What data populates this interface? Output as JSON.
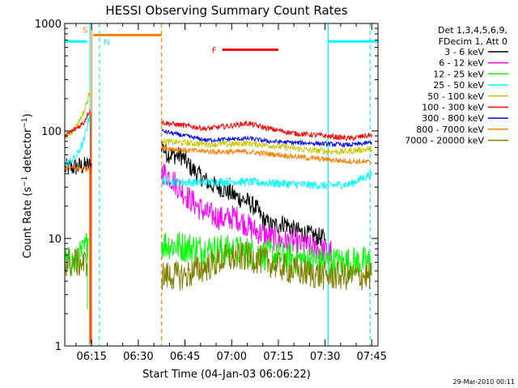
{
  "chart_data": {
    "type": "line",
    "title": "HESSI Observing Summary Count Rates",
    "xlabel": "Start Time (04-Jan-03 06:06:22)",
    "ylabel": "Count Rate (s⁻¹ detector⁻¹)",
    "ylabel_main": "Count Rate (s",
    "ylabel_sup1": "−1",
    "ylabel_mid": " detector",
    "ylabel_sup2": "−1",
    "ylabel_close": ")",
    "footer": "29-Mar-2010 00:11",
    "y_scale": "log",
    "ylim": [
      1,
      1000
    ],
    "xlim": [
      "06:06:22",
      "07:47:00"
    ],
    "y_ticks": [
      {
        "v": 1,
        "label": "1"
      },
      {
        "v": 10,
        "label": "10"
      },
      {
        "v": 100,
        "label": "100"
      },
      {
        "v": 1000,
        "label": "1000"
      }
    ],
    "x_ticks": [
      {
        "t": "06:15",
        "label": "06:15"
      },
      {
        "t": "06:30",
        "label": "06:30"
      },
      {
        "t": "06:45",
        "label": "06:45"
      },
      {
        "t": "07:00",
        "label": "07:00"
      },
      {
        "t": "07:15",
        "label": "07:15"
      },
      {
        "t": "07:30",
        "label": "07:30"
      },
      {
        "t": "07:45",
        "label": "07:45"
      }
    ],
    "legend_header": [
      "Det 1,3,4,5,6,9,",
      "FDecim 1, Att 0"
    ],
    "legend_placement": "right",
    "series": [
      {
        "name": "3 - 6 keV",
        "color": "#000000",
        "segments": [
          {
            "t0": "06:06:30",
            "t1": "06:15:00",
            "v0": 45,
            "v1": 48
          },
          {
            "t0": "06:37:30",
            "t1": "07:45:00",
            "points": [
              [
                "06:37:30",
                75
              ],
              [
                "06:39:00",
                62
              ],
              [
                "06:41:00",
                60
              ],
              [
                "06:44:00",
                58
              ],
              [
                "06:47:00",
                45
              ],
              [
                "06:50:00",
                38
              ],
              [
                "06:53:00",
                32
              ],
              [
                "06:56:00",
                30
              ],
              [
                "06:59:00",
                27
              ],
              [
                "07:02:00",
                24
              ],
              [
                "07:05:00",
                22
              ],
              [
                "07:08:00",
                19
              ],
              [
                "07:10:00",
                15
              ],
              [
                "07:13:00",
                13
              ],
              [
                "07:17:00",
                14
              ],
              [
                "07:20:00",
                12
              ],
              [
                "07:24:00",
                11
              ],
              [
                "07:27:00",
                10.5
              ],
              [
                "07:30:00",
                10
              ]
            ]
          }
        ]
      },
      {
        "name": "6 - 12 keV",
        "color": "#ff00ff",
        "segments": [
          {
            "t0": "06:37:30",
            "t1": "07:32:00",
            "points": [
              [
                "06:37:30",
                42
              ],
              [
                "06:40:00",
                38
              ],
              [
                "06:43:00",
                30
              ],
              [
                "06:46:00",
                24
              ],
              [
                "06:49:00",
                20
              ],
              [
                "06:52:00",
                17
              ],
              [
                "06:55:00",
                16
              ],
              [
                "06:58:00",
                15
              ],
              [
                "07:01:00",
                16
              ],
              [
                "07:04:00",
                14
              ],
              [
                "07:07:00",
                12
              ],
              [
                "07:10:00",
                11
              ],
              [
                "07:13:00",
                10
              ],
              [
                "07:16:00",
                9.5
              ],
              [
                "07:20:00",
                9
              ],
              [
                "07:24:00",
                8.5
              ],
              [
                "07:28:00",
                8
              ],
              [
                "07:32:00",
                7.5
              ]
            ]
          }
        ]
      },
      {
        "name": "12 - 25 keV",
        "color": "#00ff00",
        "segments": [
          {
            "t0": "06:06:30",
            "t1": "06:14:00",
            "points": [
              [
                "06:06:30",
                6
              ],
              [
                "06:10:00",
                6
              ],
              [
                "06:13:00",
                8
              ],
              [
                "06:14:00",
                10
              ]
            ]
          },
          {
            "t0": "06:37:30",
            "t1": "07:45:00",
            "points": [
              [
                "06:37:30",
                9
              ],
              [
                "06:43:00",
                8.5
              ],
              [
                "06:50:00",
                8
              ],
              [
                "06:57:00",
                7.8
              ],
              [
                "07:05:00",
                7.5
              ],
              [
                "07:12:00",
                7
              ],
              [
                "07:20:00",
                6.5
              ],
              [
                "07:30:00",
                6
              ],
              [
                "07:38:00",
                6
              ],
              [
                "07:45:00",
                6
              ]
            ]
          }
        ]
      },
      {
        "name": "25 - 50 keV",
        "color": "#00ffff",
        "segments": [
          {
            "t0": "06:06:30",
            "t1": "06:14:30",
            "points": [
              [
                "06:06:30",
                48
              ],
              [
                "06:10:00",
                58
              ],
              [
                "06:12:30",
                80
              ],
              [
                "06:14:30",
                150
              ]
            ]
          },
          {
            "t0": "06:37:30",
            "t1": "07:45:00",
            "points": [
              [
                "06:37:30",
                34
              ],
              [
                "06:50:00",
                33
              ],
              [
                "07:00:00",
                34
              ],
              [
                "07:10:00",
                33
              ],
              [
                "07:20:00",
                32
              ],
              [
                "07:30:00",
                31
              ],
              [
                "07:38:00",
                32
              ],
              [
                "07:45:00",
                40
              ]
            ]
          }
        ]
      },
      {
        "name": "50 - 100 keV",
        "color": "#c8c800",
        "segments": [
          {
            "t0": "06:06:30",
            "t1": "06:14:30",
            "points": [
              [
                "06:06:30",
                85
              ],
              [
                "06:10:00",
                110
              ],
              [
                "06:12:30",
                150
              ],
              [
                "06:14:30",
                230
              ]
            ]
          },
          {
            "t0": "06:37:30",
            "t1": "07:45:00",
            "points": [
              [
                "06:37:30",
                80
              ],
              [
                "06:50:00",
                76
              ],
              [
                "07:00:00",
                75
              ],
              [
                "07:05:00",
                77
              ],
              [
                "07:15:00",
                72
              ],
              [
                "07:25:00",
                66
              ],
              [
                "07:35:00",
                64
              ],
              [
                "07:45:00",
                68
              ]
            ]
          }
        ]
      },
      {
        "name": "100 - 300 keV",
        "color": "#ff0000",
        "segments": [
          {
            "t0": "06:06:30",
            "t1": "06:14:30",
            "points": [
              [
                "06:06:30",
                90
              ],
              [
                "06:10:00",
                105
              ],
              [
                "06:12:30",
                120
              ],
              [
                "06:14:30",
                160
              ]
            ]
          },
          {
            "t0": "06:37:30",
            "t1": "07:45:00",
            "points": [
              [
                "06:37:30",
                120
              ],
              [
                "06:45:00",
                112
              ],
              [
                "06:52:00",
                105
              ],
              [
                "07:00:00",
                112
              ],
              [
                "07:05:00",
                118
              ],
              [
                "07:12:00",
                105
              ],
              [
                "07:20:00",
                95
              ],
              [
                "07:30:00",
                90
              ],
              [
                "07:38:00",
                85
              ],
              [
                "07:45:00",
                92
              ]
            ]
          }
        ]
      },
      {
        "name": "300 - 800 keV",
        "color": "#0000ff",
        "segments": [
          {
            "t0": "06:37:30",
            "t1": "07:45:00",
            "points": [
              [
                "06:37:30",
                100
              ],
              [
                "06:45:00",
                90
              ],
              [
                "06:52:00",
                82
              ],
              [
                "07:00:00",
                84
              ],
              [
                "07:06:00",
                85
              ],
              [
                "07:12:00",
                80
              ],
              [
                "07:20:00",
                78
              ],
              [
                "07:30:00",
                76
              ],
              [
                "07:38:00",
                74
              ],
              [
                "07:45:00",
                78
              ]
            ]
          }
        ]
      },
      {
        "name": "800 - 7000 keV",
        "color": "#ff8000",
        "segments": [
          {
            "t0": "06:06:30",
            "t1": "06:15:00",
            "points": [
              [
                "06:06:30",
                45
              ],
              [
                "06:10:00",
                45
              ],
              [
                "06:15:00",
                45
              ]
            ]
          },
          {
            "t0": "06:37:30",
            "t1": "07:45:00",
            "points": [
              [
                "06:37:30",
                70
              ],
              [
                "06:45:00",
                66
              ],
              [
                "06:55:00",
                64
              ],
              [
                "07:05:00",
                64
              ],
              [
                "07:15:00",
                60
              ],
              [
                "07:25:00",
                56
              ],
              [
                "07:35:00",
                53
              ],
              [
                "07:45:00",
                51
              ]
            ]
          }
        ]
      },
      {
        "name": "7000 - 20000 keV",
        "color": "#808000",
        "segments": [
          {
            "t0": "06:06:30",
            "t1": "06:13:30",
            "points": [
              [
                "06:06:30",
                6
              ],
              [
                "06:10:00",
                6
              ],
              [
                "06:13:30",
                5.8
              ]
            ]
          },
          {
            "t0": "06:37:30",
            "t1": "07:45:00",
            "points": [
              [
                "06:37:30",
                4.5
              ],
              [
                "06:45:00",
                4.5
              ],
              [
                "06:52:00",
                5.5
              ],
              [
                "06:58:00",
                6.5
              ],
              [
                "07:05:00",
                6.8
              ],
              [
                "07:12:00",
                6
              ],
              [
                "07:20:00",
                5
              ],
              [
                "07:30:00",
                4.5
              ],
              [
                "07:38:00",
                4.5
              ],
              [
                "07:45:00",
                4.5
              ]
            ]
          }
        ]
      }
    ],
    "flags": [
      {
        "label": "S",
        "color": "#ff8000",
        "t0": "06:15:30",
        "t1": "06:37:30",
        "v": 780
      },
      {
        "label": "N",
        "color": "#00ffff",
        "t0": "06:06:30",
        "t1": "06:13:30",
        "v": 680
      },
      {
        "label": "N",
        "color": "#00ffff",
        "t0": "07:31:00",
        "t1": "07:47:00",
        "v": 680
      },
      {
        "label": "F",
        "color": "#ff0000",
        "t0": "06:57:00",
        "t1": "07:15:00",
        "v": 570
      }
    ],
    "vlines": [
      {
        "t": "06:15:00",
        "color": "#ff8000",
        "style": "solid"
      },
      {
        "t": "06:14:30",
        "color": "#00ffff",
        "style": "solid"
      },
      {
        "t": "06:17:30",
        "color": "#00ffff",
        "style": "dashed"
      },
      {
        "t": "06:37:30",
        "color": "#ff8000",
        "style": "dashed"
      },
      {
        "t": "07:31:00",
        "color": "#00ffff",
        "style": "solid"
      },
      {
        "t": "07:44:30",
        "color": "#00ffff",
        "style": "dashed"
      }
    ],
    "grid": false
  }
}
